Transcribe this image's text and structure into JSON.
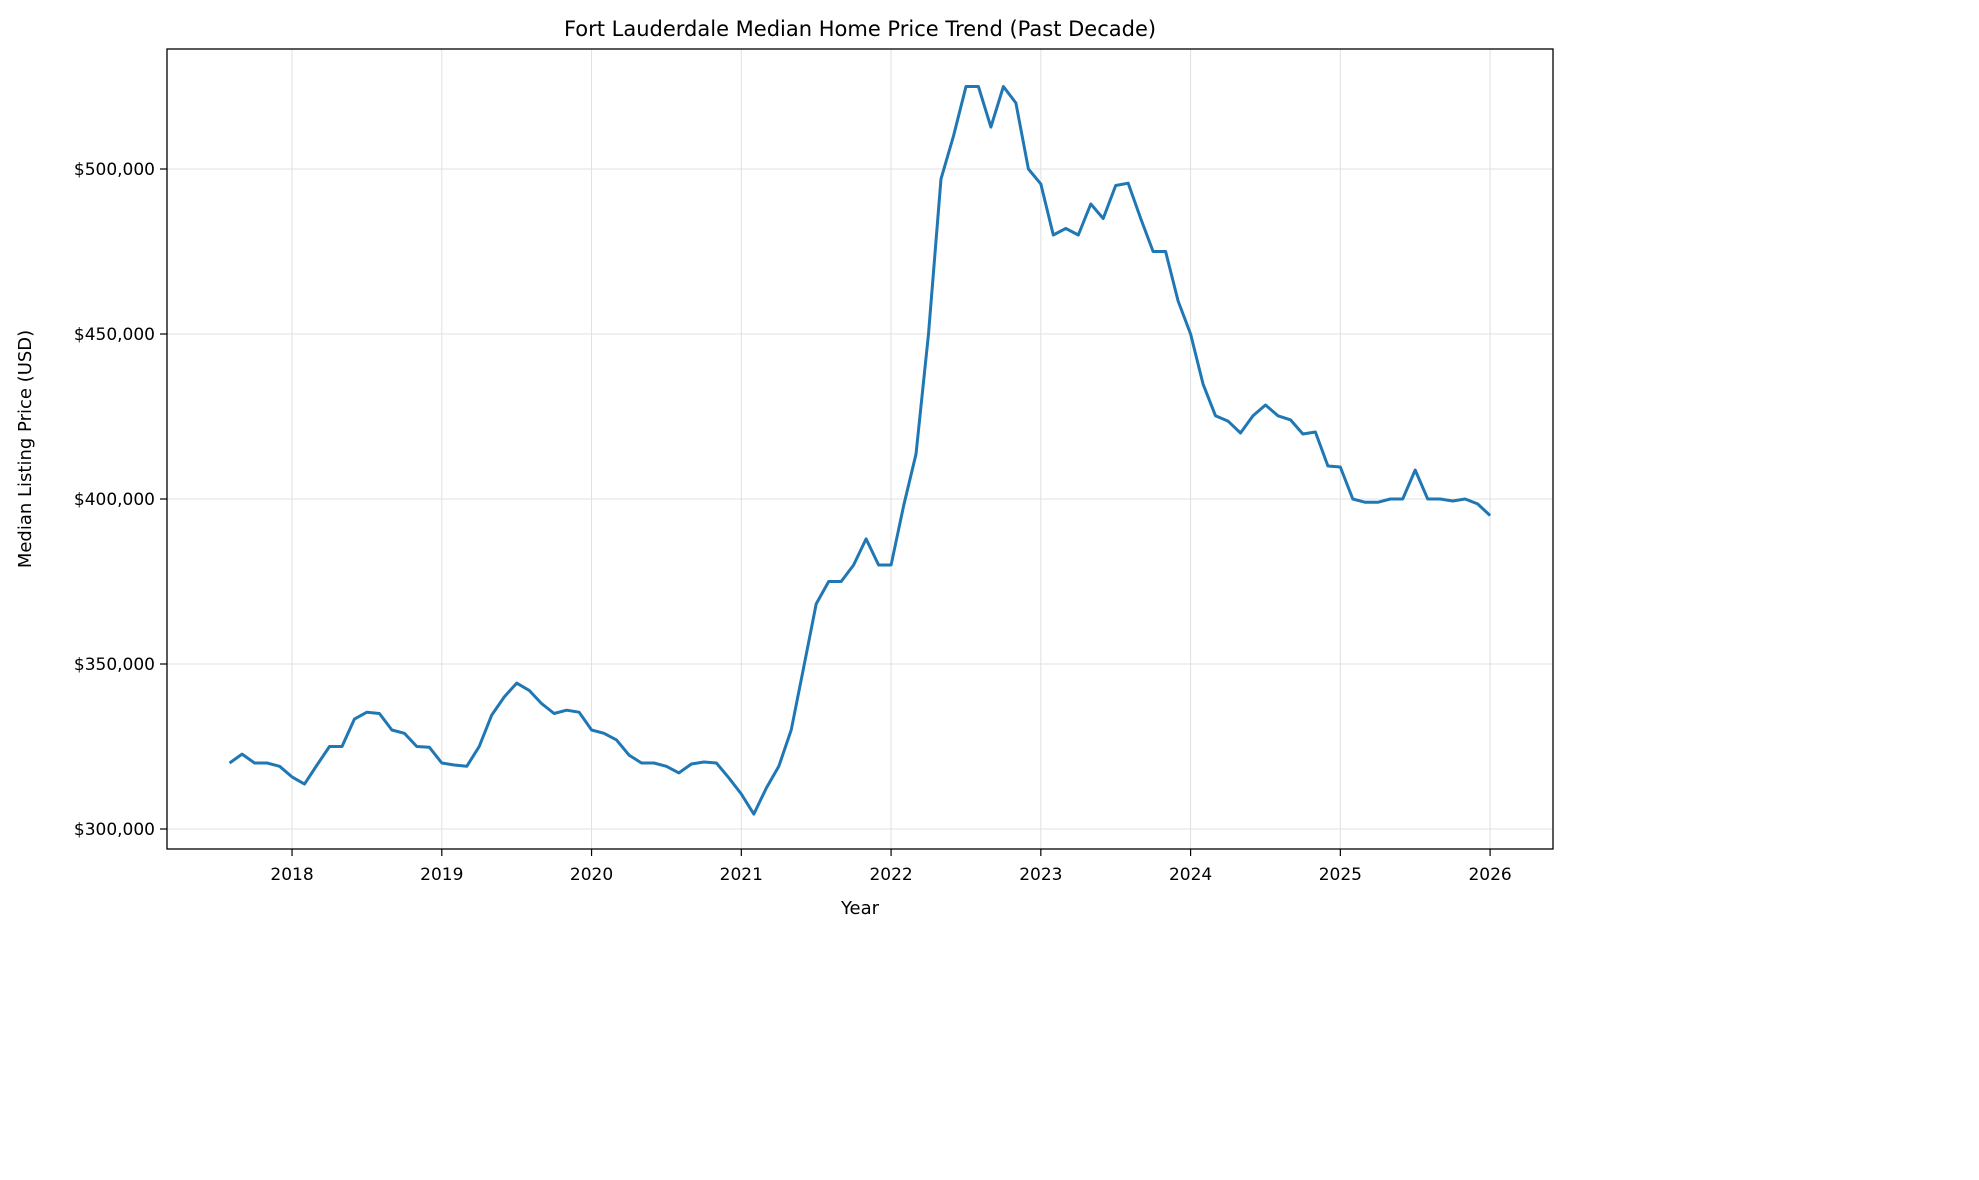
{
  "chart_data": {
    "type": "line",
    "title": "Fort Lauderdale Median Home Price Trend (Past Decade)",
    "xlabel": "Year",
    "ylabel": "Median Listing Price (USD)",
    "grid": true,
    "legend": "none",
    "xlim": [
      2017.165,
      2026.42
    ],
    "ylim": [
      293939,
      536364
    ],
    "x_ticks": [
      "2018",
      "2019",
      "2020",
      "2021",
      "2022",
      "2023",
      "2024",
      "2025",
      "2026"
    ],
    "y_ticks": [
      300000,
      350000,
      400000,
      450000,
      500000
    ],
    "y_tick_labels": [
      "$300,000",
      "$350,000",
      "$400,000",
      "$450,000",
      "$500,000"
    ],
    "colors": {
      "line": "#1f77b4",
      "grid": "#e0e0e0"
    },
    "series": [
      {
        "x": [
          "2017-08",
          "2017-09",
          "2017-10",
          "2017-11",
          "2017-12",
          "2018-01",
          "2018-02",
          "2018-03",
          "2018-04",
          "2018-05",
          "2018-06",
          "2018-07",
          "2018-08",
          "2018-09",
          "2018-10",
          "2018-11",
          "2018-12",
          "2019-01",
          "2019-02",
          "2019-03",
          "2019-04",
          "2019-05",
          "2019-06",
          "2019-07",
          "2019-08",
          "2019-09",
          "2019-10",
          "2019-11",
          "2019-12",
          "2020-01",
          "2020-02",
          "2020-03",
          "2020-04",
          "2020-05",
          "2020-06",
          "2020-07",
          "2020-08",
          "2020-09",
          "2020-10",
          "2020-11",
          "2020-12",
          "2021-01",
          "2021-02",
          "2021-03",
          "2021-04",
          "2021-05",
          "2021-06",
          "2021-07",
          "2021-08",
          "2021-09",
          "2021-10",
          "2021-11",
          "2021-12",
          "2022-01",
          "2022-02",
          "2022-03",
          "2022-04",
          "2022-05",
          "2022-06",
          "2022-07",
          "2022-08",
          "2022-09",
          "2022-10",
          "2022-11",
          "2022-12",
          "2023-01",
          "2023-02",
          "2023-03",
          "2023-04",
          "2023-05",
          "2023-06",
          "2023-07",
          "2023-08",
          "2023-09",
          "2023-10",
          "2023-11",
          "2023-12",
          "2024-01",
          "2024-02",
          "2024-03",
          "2024-04",
          "2024-05",
          "2024-06",
          "2024-07",
          "2024-08",
          "2024-09",
          "2024-10",
          "2024-11",
          "2024-12",
          "2025-01",
          "2025-02",
          "2025-03",
          "2025-04",
          "2025-05",
          "2025-06",
          "2025-07",
          "2025-08",
          "2025-09",
          "2025-10",
          "2025-11",
          "2025-12",
          "2026-01"
        ],
        "y": [
          320000,
          322700,
          320000,
          320000,
          319000,
          315800,
          313600,
          319400,
          325000,
          325000,
          333300,
          335400,
          335000,
          330000,
          329000,
          325000,
          324800,
          320000,
          319400,
          319000,
          325000,
          334500,
          340000,
          344200,
          342000,
          338000,
          335000,
          336000,
          335400,
          330000,
          329000,
          327000,
          322400,
          320000,
          320000,
          319000,
          317000,
          319700,
          320300,
          320000,
          315500,
          310600,
          304500,
          312400,
          319000,
          330000,
          349000,
          368200,
          375000,
          375000,
          380000,
          387900,
          380000,
          380000,
          397900,
          413600,
          450000,
          497000,
          510000,
          525000,
          525000,
          512700,
          525000,
          520000,
          500000,
          495500,
          480000,
          482000,
          480000,
          489400,
          485000,
          495000,
          495700,
          485000,
          475000,
          475000,
          460000,
          450000,
          434800,
          425200,
          423600,
          420000,
          425200,
          428500,
          425200,
          424000,
          419700,
          420300,
          410000,
          409700,
          400000,
          399000,
          399000,
          400000,
          400000,
          408800,
          400000,
          400000,
          399400,
          400000,
          398500,
          395000
        ]
      }
    ]
  }
}
